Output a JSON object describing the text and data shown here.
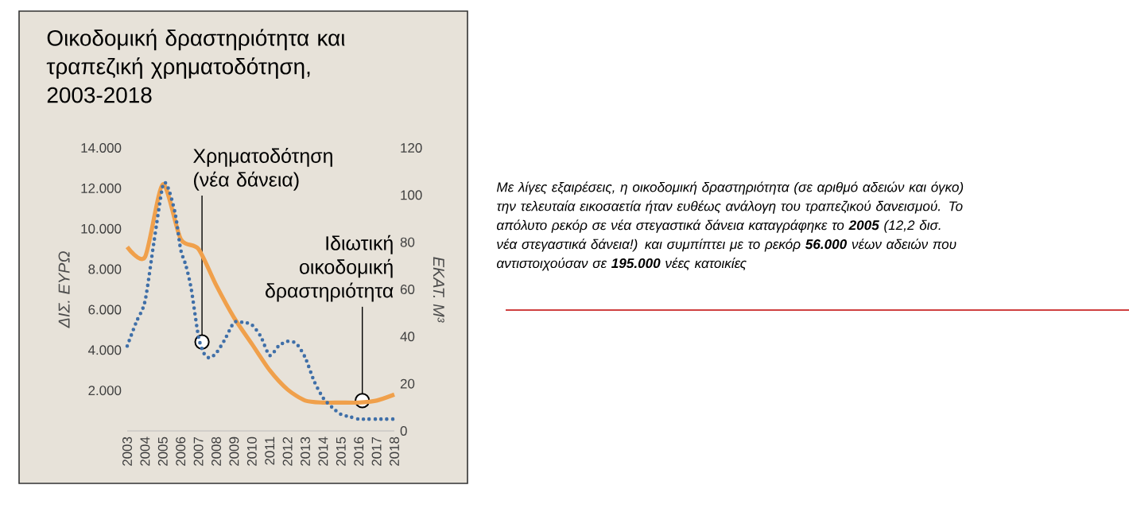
{
  "chart_data": {
    "type": "line",
    "title": "Οικοδομική δραστηριότητα και τραπεζική χρηματοδότηση, 2003-2018",
    "ylabel": "ΔΙΣ. ΕΥΡΩ",
    "y2label": "ΕΚΑΤ. Μ³",
    "xlim": [
      2003,
      2018
    ],
    "xticks": [
      2003,
      2004,
      2005,
      2006,
      2007,
      2008,
      2009,
      2010,
      2011,
      2012,
      2013,
      2014,
      2015,
      2016,
      2017,
      2018
    ],
    "ylim": [
      0,
      14000
    ],
    "yticks": [
      {
        "value": 2000,
        "label": "2.000"
      },
      {
        "value": 4000,
        "label": "4.000"
      },
      {
        "value": 6000,
        "label": "6.000"
      },
      {
        "value": 8000,
        "label": "8.000"
      },
      {
        "value": 10000,
        "label": "10.000"
      },
      {
        "value": 12000,
        "label": "12.000"
      },
      {
        "value": 14000,
        "label": "14.000"
      }
    ],
    "y2lim": [
      0,
      120
    ],
    "y2ticks": [
      0,
      20,
      40,
      60,
      80,
      100,
      120
    ],
    "series": [
      {
        "color": "#f0a04b",
        "line_style": "solid",
        "x": [
          2003,
          2004,
          2005,
          2006,
          2007,
          2008,
          2009,
          2010,
          2011,
          2012,
          2013,
          2014,
          2015,
          2016,
          2017,
          2018
        ],
        "values": [
          9100,
          8600,
          12200,
          9500,
          9000,
          7200,
          5600,
          4300,
          3000,
          2050,
          1500,
          1400,
          1400,
          1400,
          1500,
          1800
        ]
      },
      {
        "color": "#3f6fa8",
        "line_style": "dotted",
        "axis": "y2",
        "x": [
          2003,
          2003.5,
          2004,
          2004.5,
          2005,
          2005.3,
          2005.7,
          2006,
          2006.3,
          2006.6,
          2007,
          2007.3,
          2007.6,
          2008,
          2008.5,
          2009,
          2009.5,
          2010,
          2010.5,
          2011,
          2011.5,
          2012,
          2012.5,
          2013,
          2013.5,
          2014,
          2014.5,
          2015,
          2015.5,
          2016,
          2016.5,
          2017,
          2017.5,
          2018
        ],
        "values": [
          36,
          46,
          55,
          80,
          104,
          103,
          92,
          77,
          70,
          60,
          40,
          33,
          31,
          33,
          39,
          46,
          46,
          45,
          40,
          32,
          36,
          38,
          37,
          31,
          21,
          14,
          10,
          7,
          6,
          5,
          5,
          5,
          5,
          5
        ]
      }
    ],
    "annotations": [
      {
        "text": "Χρηματοδότηση (νέα δάνεια)",
        "x": 2007.2,
        "y": 4400
      },
      {
        "text": "Ιδιωτική οικοδομική δραστηριότητα",
        "x": 2016.2,
        "y": 1500
      },
      "Με λίγες εξαιρέσεις, η οικοδομική δραστηριότητα (σε αριθμό αδειών και όγκο) την τελευταία εικοσαετία ήταν ευθέως ανάλογη του τραπεζικού δανεισμού. Το απόλυτο ρεκόρ σε νέα στεγαστικά δάνεια καταγράφηκε το **2005** (12,2 δισ. νέα στεγαστικά δάνεια!) και συμπίπτει με το ρεκόρ **56.000** νέων αδειών που αντιστοιχούσαν σε **195.000** νέες κατοικίες"
    ]
  }
}
